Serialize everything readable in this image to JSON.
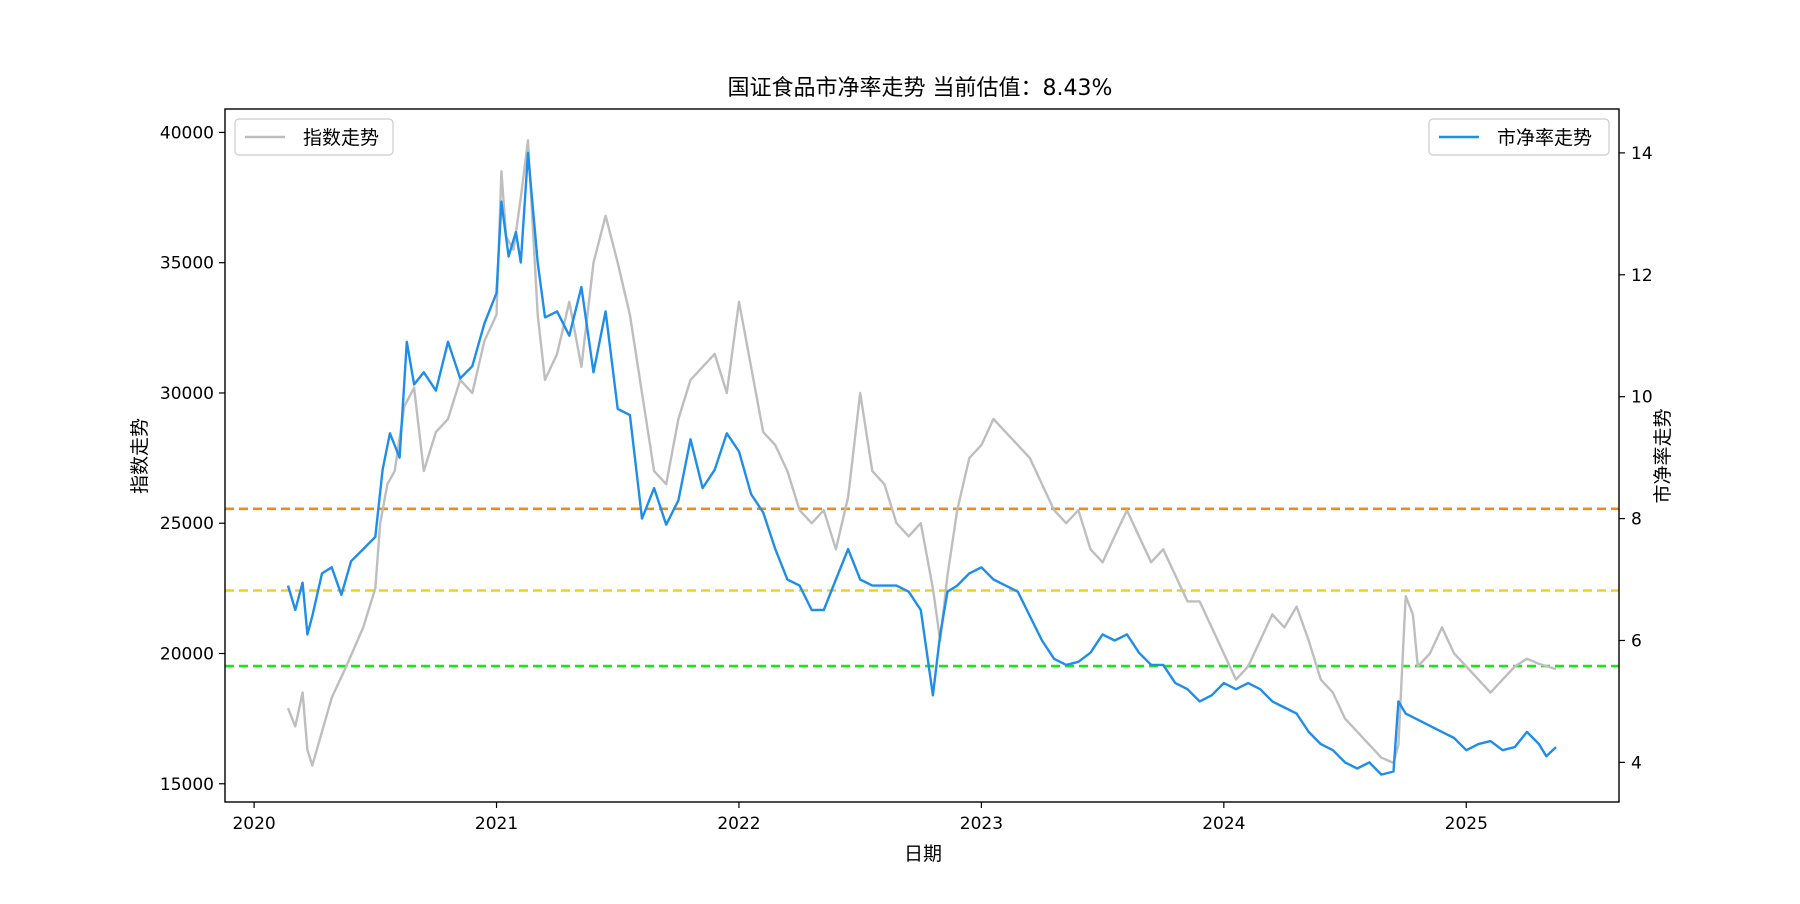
{
  "chart_data": {
    "type": "line",
    "title": "国证食品市净率走势 当前估值：8.43%",
    "xlabel": "日期",
    "ylabel_left": "指数走势",
    "ylabel_right": "市净率走势",
    "x_ticks": [
      "2020",
      "2021",
      "2022",
      "2023",
      "2024",
      "2025"
    ],
    "xlim": [
      2019.88,
      2025.63
    ],
    "left_axis": {
      "ticks": [
        15000,
        20000,
        25000,
        30000,
        35000,
        40000
      ],
      "ylim": [
        14300,
        40900
      ]
    },
    "right_axis": {
      "ticks": [
        4,
        6,
        8,
        10,
        12,
        14
      ],
      "ylim": [
        3.35,
        14.72
      ]
    },
    "grid": false,
    "legend_left": {
      "label": "指数走势",
      "placement": "upper-left"
    },
    "legend_right": {
      "label": "市净率走势",
      "placement": "upper-right"
    },
    "colors": {
      "index": "#bebebe",
      "pb": "#1e8ee8",
      "line_high": "#ee8c16",
      "line_mid": "#f2d017",
      "line_low": "#19e619"
    },
    "hlines": [
      {
        "axis": "right",
        "y": 8.16,
        "color": "#ee8c16",
        "style": "dashed"
      },
      {
        "axis": "right",
        "y": 6.82,
        "color": "#f2d017",
        "style": "dashed"
      },
      {
        "axis": "right",
        "y": 5.58,
        "color": "#19e619",
        "style": "dashed"
      }
    ],
    "series": [
      {
        "name": "指数走势",
        "axis": "left",
        "x": [
          2020.14,
          2020.17,
          2020.2,
          2020.22,
          2020.24,
          2020.28,
          2020.32,
          2020.38,
          2020.45,
          2020.5,
          2020.52,
          2020.55,
          2020.58,
          2020.62,
          2020.66,
          2020.7,
          2020.75,
          2020.8,
          2020.85,
          2020.9,
          2020.95,
          2021.0,
          2021.02,
          2021.04,
          2021.07,
          2021.1,
          2021.13,
          2021.17,
          2021.2,
          2021.25,
          2021.3,
          2021.35,
          2021.4,
          2021.45,
          2021.5,
          2021.55,
          2021.6,
          2021.65,
          2021.7,
          2021.75,
          2021.8,
          2021.85,
          2021.9,
          2021.95,
          2022.0,
          2022.05,
          2022.1,
          2022.15,
          2022.2,
          2022.25,
          2022.3,
          2022.35,
          2022.4,
          2022.45,
          2022.5,
          2022.55,
          2022.6,
          2022.65,
          2022.7,
          2022.75,
          2022.8,
          2022.83,
          2022.86,
          2022.9,
          2022.95,
          2023.0,
          2023.05,
          2023.1,
          2023.15,
          2023.2,
          2023.25,
          2023.3,
          2023.35,
          2023.4,
          2023.45,
          2023.5,
          2023.55,
          2023.6,
          2023.65,
          2023.7,
          2023.75,
          2023.8,
          2023.85,
          2023.9,
          2023.95,
          2024.0,
          2024.05,
          2024.1,
          2024.15,
          2024.2,
          2024.25,
          2024.3,
          2024.35,
          2024.4,
          2024.45,
          2024.5,
          2024.55,
          2024.6,
          2024.65,
          2024.7,
          2024.72,
          2024.75,
          2024.78,
          2024.8,
          2024.85,
          2024.9,
          2024.95,
          2025.0,
          2025.05,
          2025.1,
          2025.15,
          2025.2,
          2025.25,
          2025.3,
          2025.37
        ],
        "y": [
          17900,
          17200,
          18500,
          16300,
          15700,
          17000,
          18300,
          19500,
          21000,
          22500,
          25000,
          26500,
          27000,
          29500,
          30200,
          27000,
          28500,
          29000,
          30500,
          30000,
          32000,
          33000,
          38500,
          36000,
          35500,
          37500,
          39700,
          33000,
          30500,
          31500,
          33500,
          31000,
          35000,
          36800,
          35000,
          33000,
          30000,
          27000,
          26500,
          29000,
          30500,
          31000,
          31500,
          30000,
          33500,
          31000,
          28500,
          28000,
          27000,
          25500,
          25000,
          25500,
          24000,
          26000,
          30000,
          27000,
          26500,
          25000,
          24500,
          25000,
          22500,
          20500,
          23000,
          25500,
          27500,
          28000,
          29000,
          28500,
          28000,
          27500,
          26500,
          25500,
          25000,
          25500,
          24000,
          23500,
          24500,
          25500,
          24500,
          23500,
          24000,
          23000,
          22000,
          22000,
          21000,
          20000,
          19000,
          19500,
          20500,
          21500,
          21000,
          21800,
          20500,
          19000,
          18500,
          17500,
          17000,
          16500,
          16000,
          15800,
          16500,
          22200,
          21500,
          19500,
          20000,
          21000,
          20000,
          19500,
          19000,
          18500,
          19000,
          19500,
          19800,
          19600,
          19400
        ]
      },
      {
        "name": "市净率走势",
        "axis": "right",
        "x": [
          2020.14,
          2020.17,
          2020.2,
          2020.22,
          2020.24,
          2020.28,
          2020.32,
          2020.36,
          2020.4,
          2020.45,
          2020.5,
          2020.53,
          2020.56,
          2020.6,
          2020.63,
          2020.66,
          2020.7,
          2020.75,
          2020.8,
          2020.85,
          2020.9,
          2020.95,
          2021.0,
          2021.02,
          2021.05,
          2021.08,
          2021.1,
          2021.13,
          2021.17,
          2021.2,
          2021.25,
          2021.3,
          2021.35,
          2021.4,
          2021.45,
          2021.5,
          2021.55,
          2021.6,
          2021.65,
          2021.7,
          2021.75,
          2021.8,
          2021.85,
          2021.9,
          2021.95,
          2022.0,
          2022.05,
          2022.1,
          2022.15,
          2022.2,
          2022.25,
          2022.3,
          2022.35,
          2022.4,
          2022.45,
          2022.5,
          2022.55,
          2022.6,
          2022.65,
          2022.7,
          2022.75,
          2022.8,
          2022.83,
          2022.86,
          2022.9,
          2022.95,
          2023.0,
          2023.05,
          2023.1,
          2023.15,
          2023.2,
          2023.25,
          2023.3,
          2023.35,
          2023.4,
          2023.45,
          2023.5,
          2023.55,
          2023.6,
          2023.65,
          2023.7,
          2023.75,
          2023.8,
          2023.85,
          2023.9,
          2023.95,
          2024.0,
          2024.05,
          2024.1,
          2024.15,
          2024.2,
          2024.25,
          2024.3,
          2024.35,
          2024.4,
          2024.45,
          2024.5,
          2024.55,
          2024.6,
          2024.65,
          2024.7,
          2024.72,
          2024.75,
          2024.8,
          2024.85,
          2024.9,
          2024.95,
          2025.0,
          2025.05,
          2025.1,
          2025.15,
          2025.2,
          2025.25,
          2025.3,
          2025.33,
          2025.37
        ],
        "y": [
          6.9,
          6.5,
          6.95,
          6.1,
          6.4,
          7.1,
          7.2,
          6.75,
          7.3,
          7.5,
          7.7,
          8.8,
          9.4,
          9.0,
          10.9,
          10.2,
          10.4,
          10.1,
          10.9,
          10.3,
          10.5,
          11.2,
          11.7,
          13.2,
          12.3,
          12.7,
          12.2,
          14.0,
          12.2,
          11.3,
          11.4,
          11.0,
          11.8,
          10.4,
          11.4,
          9.8,
          9.7,
          8.0,
          8.5,
          7.9,
          8.3,
          9.3,
          8.5,
          8.8,
          9.4,
          9.1,
          8.4,
          8.1,
          7.5,
          7.0,
          6.9,
          6.5,
          6.5,
          7.0,
          7.5,
          7.0,
          6.9,
          6.9,
          6.9,
          6.8,
          6.5,
          5.1,
          6.1,
          6.8,
          6.9,
          7.1,
          7.2,
          7.0,
          6.9,
          6.8,
          6.4,
          6.0,
          5.7,
          5.6,
          5.65,
          5.8,
          6.1,
          6.0,
          6.1,
          5.8,
          5.6,
          5.6,
          5.3,
          5.2,
          5.0,
          5.1,
          5.3,
          5.2,
          5.3,
          5.2,
          5.0,
          4.9,
          4.8,
          4.5,
          4.3,
          4.2,
          4.0,
          3.9,
          4.0,
          3.8,
          3.85,
          5.0,
          4.8,
          4.7,
          4.6,
          4.5,
          4.4,
          4.2,
          4.3,
          4.35,
          4.2,
          4.25,
          4.5,
          4.3,
          4.1,
          4.25
        ]
      }
    ]
  }
}
